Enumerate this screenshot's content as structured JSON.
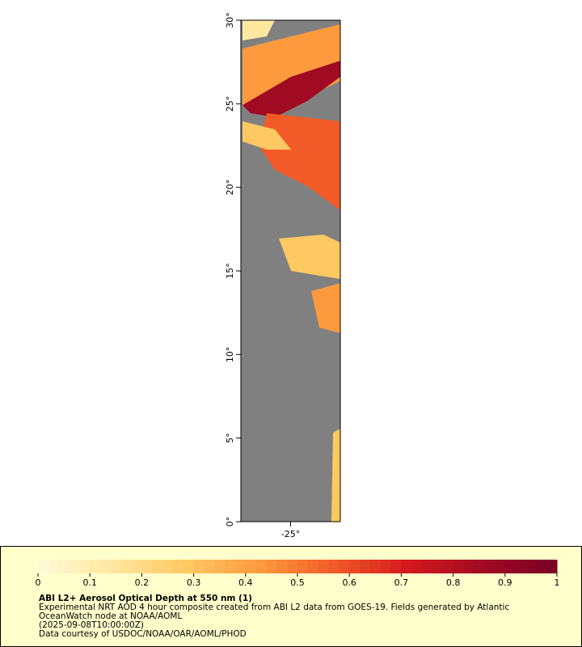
{
  "chart_data": {
    "type": "map",
    "xlim": [
      -28,
      -22
    ],
    "ylim": [
      0,
      30
    ],
    "xticks": [
      {
        "value": -25,
        "label": "-25°"
      }
    ],
    "yticks": [
      {
        "value": 0,
        "label": "0°"
      },
      {
        "value": 5,
        "label": "5°"
      },
      {
        "value": 10,
        "label": "10°"
      },
      {
        "value": 15,
        "label": "15°"
      },
      {
        "value": 20,
        "label": "20°"
      },
      {
        "value": 25,
        "label": "25°"
      },
      {
        "value": 30,
        "label": "30°"
      }
    ],
    "colorbar": {
      "range": [
        0,
        1
      ],
      "ticks": [
        0,
        0.1,
        0.2,
        0.3,
        0.4,
        0.5,
        0.6,
        0.7,
        0.8,
        0.9,
        1
      ],
      "colors": [
        "#fffbd6",
        "#ffe7a0",
        "#fec862",
        "#fd9a3e",
        "#f25a27",
        "#d3181d",
        "#a00a22",
        "#7a0026"
      ]
    },
    "legend": {
      "title": "ABI L2+ Aerosol Optical Depth at 550 nm (1)",
      "lines": [
        "Experimental NRT AOD 4 hour composite created from ABI L2 data from GOES-19. Fields generated by Atlantic",
        "OceanWatch node at NOAA/AOML",
        "(2025-09-08T10:00:00Z)",
        "Data courtesy of USDOC/NOAA/OAR/AOML/PHOD"
      ]
    }
  }
}
